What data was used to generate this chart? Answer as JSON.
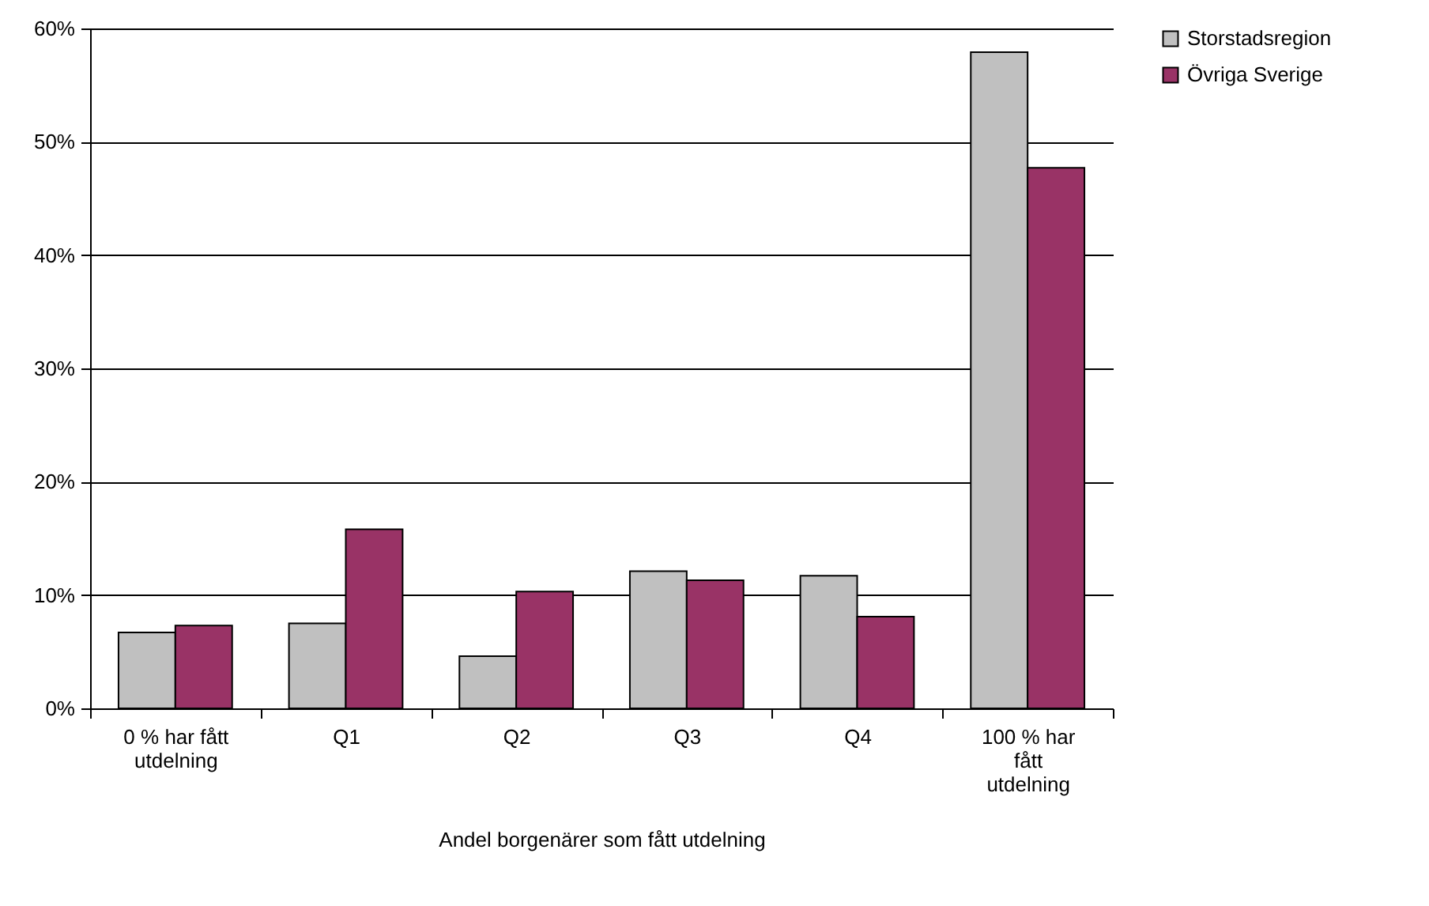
{
  "chart_data": {
    "type": "bar",
    "xlabel": "Andel borgenärer som fått utdelning",
    "categories": [
      "0 % har fått utdelning",
      "Q1",
      "Q2",
      "Q3",
      "Q4",
      "100 % har fått utdelning"
    ],
    "series": [
      {
        "name": "Storstadsregion",
        "color": "#c0c0c0",
        "values": [
          6.7,
          7.5,
          4.6,
          12.1,
          11.7,
          57.9
        ]
      },
      {
        "name": "Övriga Sverige",
        "color": "#993366",
        "values": [
          7.3,
          15.8,
          10.3,
          11.3,
          8.1,
          47.7
        ]
      }
    ],
    "ylim": [
      0,
      60
    ],
    "yticks": [
      {
        "value": 0,
        "label": "0%"
      },
      {
        "value": 10,
        "label": "10%"
      },
      {
        "value": 20,
        "label": "20%"
      },
      {
        "value": 30,
        "label": "30%"
      },
      {
        "value": 40,
        "label": "40%"
      },
      {
        "value": 50,
        "label": "50%"
      },
      {
        "value": 60,
        "label": "60%"
      }
    ],
    "grid": "y",
    "legend": "right"
  }
}
